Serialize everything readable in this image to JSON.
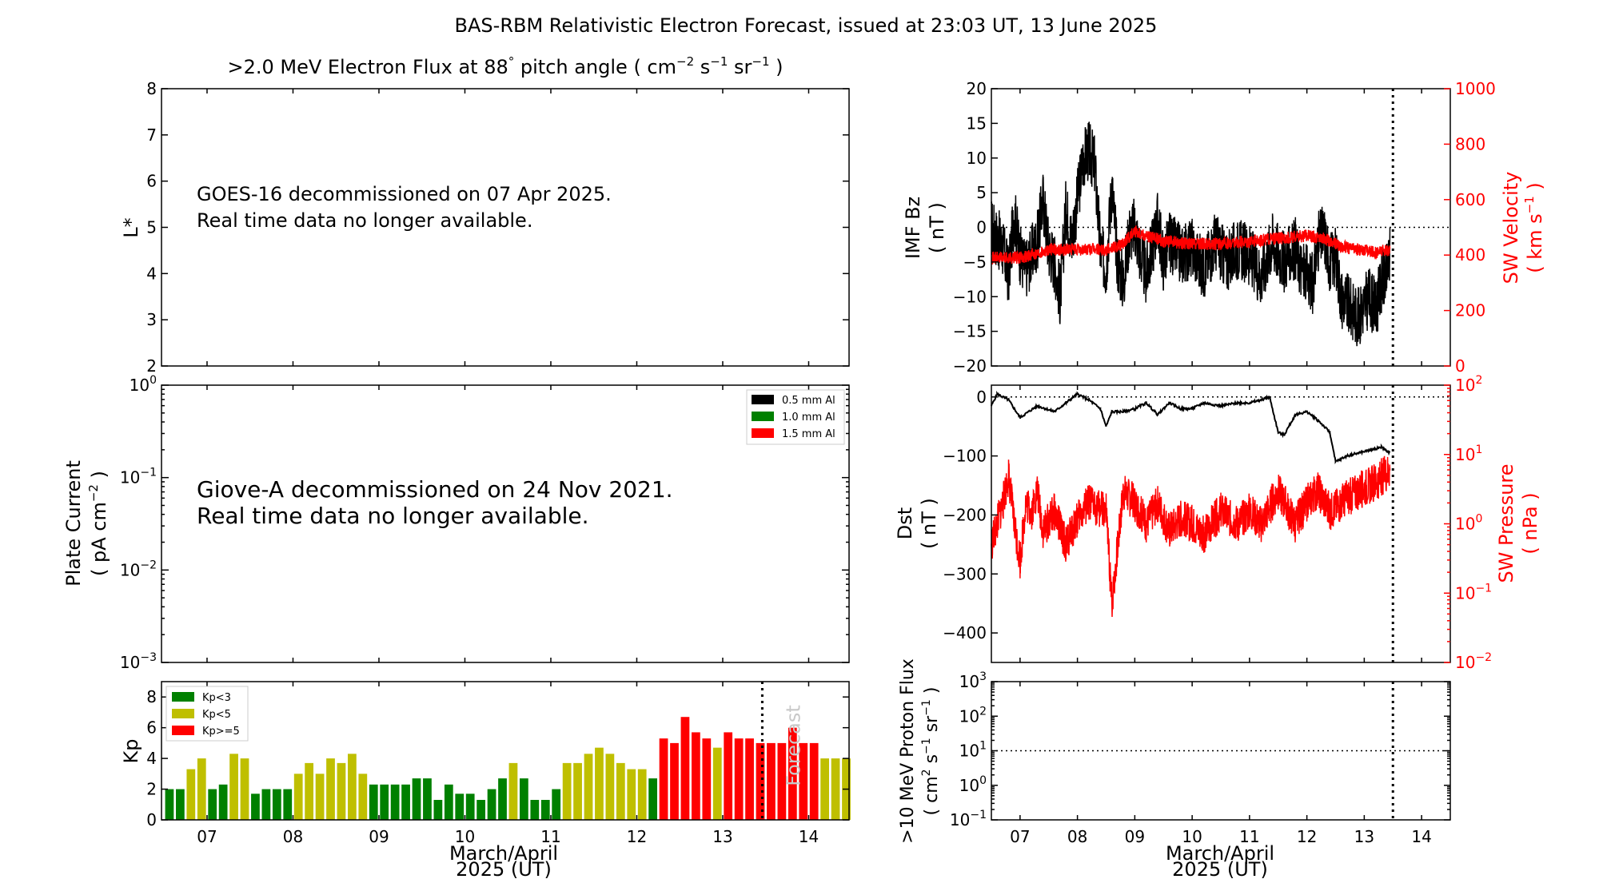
{
  "title": "BAS-RBM Relativistic Electron Forecast, issued at 23:03 UT, 13 June 2025",
  "colors": {
    "black": "#000000",
    "red": "#ff0000",
    "green": "#008000",
    "olive": "#bfbf00",
    "grey": "#c8c8c8"
  },
  "xaxis_label_line1": "March/April",
  "xaxis_label_line2": "2025 (UT)",
  "chart_data": [
    {
      "id": "electron-flux",
      "type": "heatmap",
      "title_main": ">2.0 MeV Electron Flux at 88",
      "title_deg": "°",
      "title_units_open": " pitch angle ( cm",
      "title_exp_cm": "−2",
      "title_s": " s",
      "title_exp_s": "−1",
      "title_sr": " sr",
      "title_exp_sr": "−1",
      "title_close": " )",
      "ylabel": "L*",
      "ylim": [
        2,
        8
      ],
      "yticks": [
        "2",
        "3",
        "4",
        "5",
        "6",
        "7",
        "8"
      ],
      "message_line1": "GOES-16 decommissioned on 07 Apr 2025.",
      "message_line2": "Real time data no longer available."
    },
    {
      "id": "plate-current",
      "type": "line",
      "ylabel": "Plate Current",
      "ylabel2_open": "( pA cm",
      "ylabel2_exp": "−2",
      "ylabel2_close": " )",
      "yscale": "log",
      "ylim": [
        0.001,
        1
      ],
      "yticks": [
        {
          "base": "10",
          "exp": "−3"
        },
        {
          "base": "10",
          "exp": "−2"
        },
        {
          "base": "10",
          "exp": "−1"
        },
        {
          "base": "10",
          "exp": "0"
        }
      ],
      "legend": [
        {
          "label": "0.5 mm Al",
          "color": "#000000"
        },
        {
          "label": "1.0 mm Al",
          "color": "#008000"
        },
        {
          "label": "1.5 mm Al",
          "color": "#ff0000"
        }
      ],
      "legend_position": "top-right",
      "message_line1": "Giove-A decommissioned on 24 Nov 2021.",
      "message_line2": "Real time data no longer available."
    },
    {
      "id": "kp",
      "type": "bar",
      "ylabel": "Kp",
      "ylim": [
        0,
        9
      ],
      "yticks": [
        "0",
        "2",
        "4",
        "6",
        "8"
      ],
      "xlim": [
        6.47,
        14.47
      ],
      "xticks": [
        "07",
        "08",
        "09",
        "10",
        "11",
        "12",
        "13",
        "14"
      ],
      "bar_start": 6.5,
      "bar_width_days": 0.125,
      "values": [
        2.0,
        2.0,
        3.3,
        4.0,
        2.0,
        2.3,
        4.3,
        4.0,
        1.7,
        2.0,
        2.0,
        2.0,
        3.0,
        3.7,
        3.0,
        4.0,
        3.7,
        4.3,
        3.0,
        2.3,
        2.3,
        2.3,
        2.3,
        2.7,
        2.7,
        1.3,
        2.3,
        1.7,
        1.7,
        1.3,
        2.0,
        2.7,
        3.7,
        2.7,
        1.3,
        1.3,
        2.0,
        3.7,
        3.7,
        4.3,
        4.7,
        4.3,
        3.7,
        3.3,
        3.3,
        2.7,
        5.3,
        5.0,
        6.7,
        5.7,
        5.3,
        4.7,
        5.7,
        5.3,
        5.3,
        5.0,
        5.0,
        5.0,
        6.0,
        5.0,
        5.0,
        4.0,
        4.0,
        4.0
      ],
      "legend": [
        {
          "label": "Kp<3",
          "color": "#008000"
        },
        {
          "label": "Kp<5",
          "color": "#bfbf00"
        },
        {
          "label": "Kp>=5",
          "color": "#ff0000"
        }
      ],
      "legend_position": "top-left",
      "now_line_x": 13.46,
      "forecast_label": "Forecast"
    },
    {
      "id": "imf-bz-sw-velocity",
      "type": "line",
      "ylabel": "IMF Bz",
      "ylabel2": "( nT )",
      "ylim": [
        -20,
        20
      ],
      "yticks": [
        "−20",
        "−15",
        "−10",
        "−5",
        "0",
        "5",
        "10",
        "15",
        "20"
      ],
      "y2label": "SW Velocity",
      "y2label2_open": "( km s",
      "y2label2_exp": "−1",
      "y2label2_close": " )",
      "y2lim": [
        0,
        1000
      ],
      "y2ticks": [
        "0",
        "200",
        "400",
        "600",
        "800",
        "1000"
      ],
      "xlim": [
        6.5,
        14.5
      ],
      "now_line_x": 13.5,
      "series": [
        {
          "name": "IMF Bz",
          "color": "#000000",
          "x": [
            6.5,
            6.7,
            6.8,
            6.9,
            7.0,
            7.1,
            7.3,
            7.4,
            7.5,
            7.6,
            7.7,
            7.8,
            7.9,
            8.1,
            8.2,
            8.3,
            8.4,
            8.5,
            8.6,
            8.7,
            8.8,
            8.9,
            9.0,
            9.1,
            9.2,
            9.3,
            9.4,
            9.5,
            9.6,
            9.8,
            10.0,
            10.2,
            10.4,
            10.6,
            10.8,
            11.0,
            11.2,
            11.4,
            11.6,
            11.8,
            11.9,
            12.1,
            12.2,
            12.3,
            12.4,
            12.5,
            12.6,
            12.7,
            12.8,
            12.9,
            13.0,
            13.1,
            13.2,
            13.3,
            13.38,
            13.45
          ],
          "y": [
            0,
            -3,
            -7,
            2,
            -4,
            -6,
            -2,
            4,
            -3,
            -5,
            -10,
            3,
            -2,
            10,
            11,
            9,
            -3,
            -6,
            6,
            -5,
            -8,
            -1,
            0,
            -4,
            -7,
            -3,
            1,
            -5,
            -2,
            -4,
            -3,
            -6,
            -2,
            -5,
            -3,
            -4,
            -7,
            -2,
            -5,
            -3,
            -6,
            -8,
            -2,
            -1,
            -5,
            -4,
            -10,
            -11,
            -12,
            -13,
            -11,
            -10,
            -12,
            -8,
            -7,
            -4
          ]
        },
        {
          "name": "SW Velocity",
          "color": "#ff0000",
          "x": [
            6.5,
            7.0,
            7.5,
            8.0,
            8.5,
            8.8,
            9.0,
            9.2,
            9.5,
            10.0,
            10.5,
            11.0,
            11.5,
            12.0,
            12.3,
            12.6,
            12.9,
            13.2,
            13.45
          ],
          "y": [
            390,
            390,
            420,
            420,
            420,
            440,
            490,
            470,
            450,
            440,
            440,
            450,
            460,
            470,
            460,
            430,
            420,
            410,
            420
          ]
        }
      ]
    },
    {
      "id": "dst-sw-pressure",
      "type": "line",
      "ylabel": "Dst",
      "ylabel2": "( nT )",
      "ylim": [
        -450,
        20
      ],
      "yticks": [
        "−400",
        "−300",
        "−200",
        "−100",
        "0"
      ],
      "y2label": "SW Pressure",
      "y2label2": "( nPa )",
      "y2scale": "log",
      "y2lim": [
        0.01,
        100
      ],
      "y2ticks": [
        {
          "base": "10",
          "exp": "−2"
        },
        {
          "base": "10",
          "exp": "−1"
        },
        {
          "base": "10",
          "exp": "0"
        },
        {
          "base": "10",
          "exp": "1"
        },
        {
          "base": "10",
          "exp": "2"
        }
      ],
      "xlim": [
        6.5,
        14.5
      ],
      "now_line_x": 13.5,
      "series": [
        {
          "name": "Dst",
          "color": "#000000",
          "x": [
            6.5,
            6.6,
            6.8,
            7.0,
            7.3,
            7.6,
            7.8,
            8.0,
            8.2,
            8.4,
            8.5,
            8.6,
            8.8,
            9.0,
            9.2,
            9.4,
            9.6,
            9.8,
            10.0,
            10.2,
            10.5,
            10.8,
            11.0,
            11.2,
            11.35,
            11.5,
            11.6,
            11.8,
            12.0,
            12.2,
            12.4,
            12.5,
            12.7,
            12.9,
            13.1,
            13.3,
            13.45
          ],
          "y": [
            -15,
            5,
            -5,
            -35,
            -15,
            -25,
            -10,
            5,
            -5,
            -20,
            -50,
            -25,
            -25,
            -20,
            -10,
            -30,
            -10,
            -20,
            -20,
            -10,
            -15,
            -10,
            -10,
            -5,
            0,
            -60,
            -65,
            -30,
            -25,
            -40,
            -60,
            -110,
            -100,
            -95,
            -90,
            -85,
            -95
          ]
        },
        {
          "name": "SW Pressure",
          "color": "#ff0000",
          "x": [
            6.5,
            6.7,
            6.8,
            6.9,
            7.0,
            7.1,
            7.2,
            7.3,
            7.4,
            7.6,
            7.8,
            8.0,
            8.2,
            8.5,
            8.6,
            8.8,
            9.0,
            9.2,
            9.4,
            9.6,
            9.8,
            10.0,
            10.2,
            10.5,
            10.8,
            11.0,
            11.2,
            11.5,
            11.8,
            12.0,
            12.2,
            12.4,
            12.6,
            12.9,
            13.2,
            13.45
          ],
          "y": [
            0.5,
            2.0,
            5.0,
            1.0,
            0.3,
            2.0,
            1.5,
            3.0,
            0.8,
            1.5,
            0.5,
            1.2,
            2.0,
            1.5,
            0.07,
            3.0,
            2.0,
            1.0,
            2.0,
            0.8,
            1.2,
            1.0,
            0.7,
            1.5,
            1.0,
            1.5,
            1.0,
            3.0,
            1.0,
            2.0,
            3.0,
            1.5,
            2.0,
            3.0,
            4.0,
            6.0
          ]
        }
      ]
    },
    {
      "id": "proton-flux",
      "type": "line",
      "ylabel": ">10 MeV Proton Flux",
      "ylabel2_open": "( cm",
      "ylabel2_exp1": "2",
      "ylabel2_mid1": " s",
      "ylabel2_exp2": "−1",
      "ylabel2_mid2": " sr",
      "ylabel2_exp3": "−1",
      "ylabel2_close": " )",
      "yscale": "log",
      "ylim": [
        0.1,
        1000
      ],
      "yticks": [
        {
          "base": "10",
          "exp": "−1"
        },
        {
          "base": "10",
          "exp": "0"
        },
        {
          "base": "10",
          "exp": "1"
        },
        {
          "base": "10",
          "exp": "2"
        },
        {
          "base": "10",
          "exp": "3"
        }
      ],
      "threshold": 10,
      "xlim": [
        6.5,
        14.5
      ],
      "xticks": [
        "07",
        "08",
        "09",
        "10",
        "11",
        "12",
        "13",
        "14"
      ],
      "now_line_x": 13.5
    }
  ]
}
